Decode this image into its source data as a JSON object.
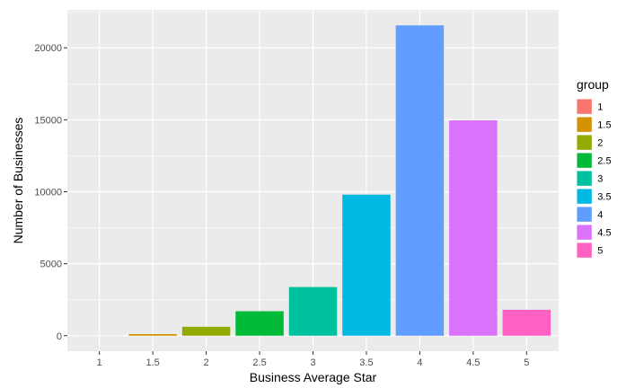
{
  "chart_data": {
    "type": "bar",
    "xlabel": "Business Average Star",
    "ylabel": "Number of Businesses",
    "categories": [
      "1",
      "1.5",
      "2",
      "2.5",
      "3",
      "3.5",
      "4",
      "4.5",
      "5"
    ],
    "values": [
      5,
      110,
      620,
      1700,
      3380,
      9800,
      21560,
      14960,
      1800
    ],
    "colors": [
      "#F8766D",
      "#D39200",
      "#93AA00",
      "#00BA38",
      "#00C19F",
      "#00B9E3",
      "#619CFF",
      "#DB72FB",
      "#FF61C3"
    ],
    "yticks": [
      0,
      5000,
      10000,
      15000,
      20000
    ],
    "ylim": [
      -1075,
      22635
    ],
    "grid": true,
    "panel_background": "#EBEBEB",
    "legend": {
      "title": "group",
      "placement": "right",
      "labels": [
        "1",
        "1.5",
        "2",
        "2.5",
        "3",
        "3.5",
        "4",
        "4.5",
        "5"
      ]
    }
  }
}
